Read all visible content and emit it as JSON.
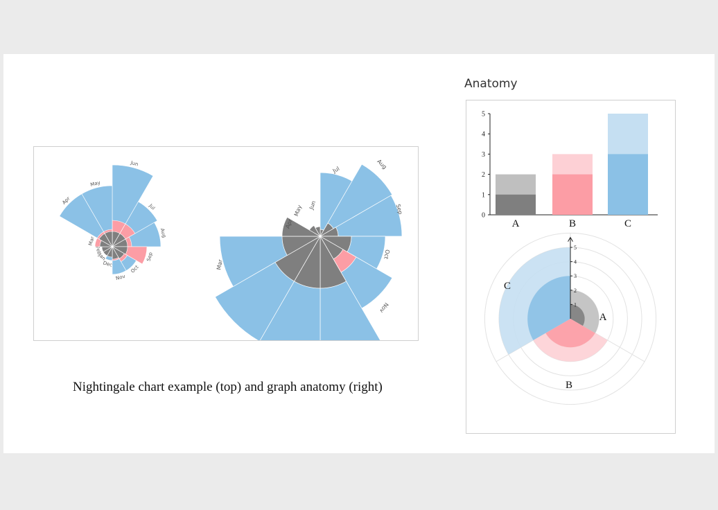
{
  "title": "Anatomy",
  "caption": "Nightingale chart example (top) and graph anatomy (right)",
  "colors": {
    "blue": "#8bc1e6",
    "pink": "#fc9da5",
    "gray": "#7f7f7f",
    "blue_light": "#c5dff2",
    "pink_light": "#fdd0d5",
    "gray_light": "#bfbfbf"
  },
  "nightingale": {
    "small": {
      "months": [
        "Jun",
        "Jul",
        "Aug",
        "Sep",
        "Oct",
        "Nov",
        "Dec",
        "Jan",
        "Feb",
        "Mar",
        "Apr",
        "May"
      ]
    },
    "large": {
      "months": [
        "Jul",
        "Aug",
        "Sep",
        "Oct",
        "Nov",
        "Mar",
        "Apr",
        "May",
        "Jun"
      ]
    }
  },
  "chart_data": [
    {
      "type": "bar",
      "categories": [
        "A",
        "B",
        "C"
      ],
      "series": [
        {
          "values": [
            1,
            2,
            3
          ]
        },
        {
          "values": [
            2,
            3,
            5
          ]
        }
      ],
      "ylim": [
        0,
        5
      ],
      "yticks": [
        "0",
        "1",
        "2",
        "3",
        "4",
        "5"
      ]
    },
    {
      "type": "pie",
      "categories": [
        "A",
        "B",
        "C"
      ],
      "series": [
        {
          "values": [
            1,
            2,
            3
          ]
        },
        {
          "values": [
            2,
            3,
            5
          ]
        }
      ],
      "rlim": [
        0,
        5
      ],
      "rticks": [
        "1",
        "2",
        "3",
        "4",
        "5"
      ]
    }
  ]
}
